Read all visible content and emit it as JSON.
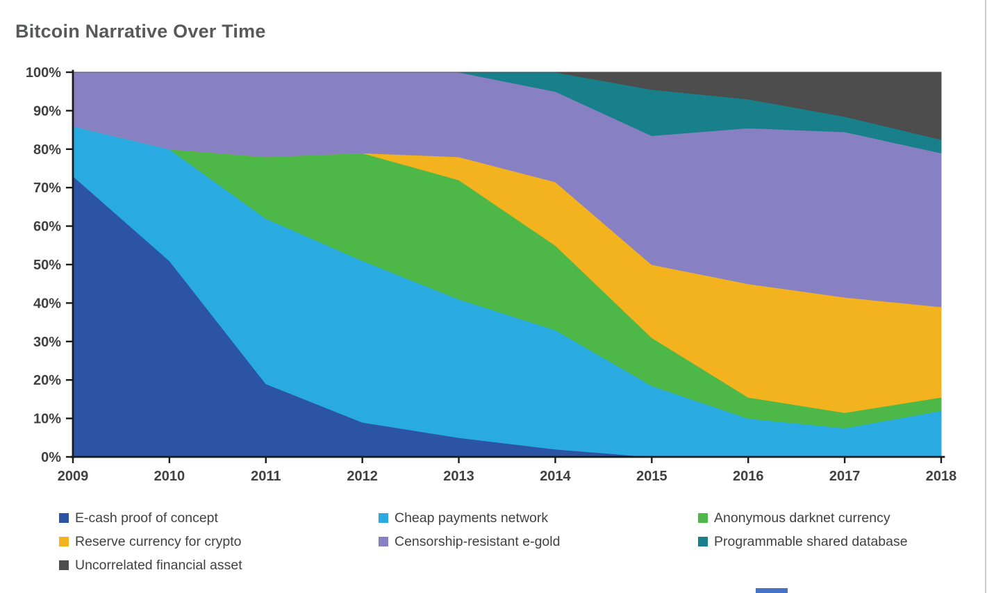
{
  "title": {
    "text": "Bitcoin Narrative Over Time",
    "color": "#58595b"
  },
  "chart_data": {
    "type": "area",
    "stacked": true,
    "unit": "percent",
    "title": "Bitcoin Narrative Over Time",
    "x_label": "",
    "y_label": "",
    "grid": false,
    "legend_position": "bottom",
    "categories": [
      2009,
      2010,
      2011,
      2012,
      2013,
      2014,
      2015,
      2016,
      2017,
      2018
    ],
    "y_axis": {
      "min": 0,
      "max": 100,
      "tick_step": 10,
      "tick_labels": [
        "0%",
        "10%",
        "20%",
        "30%",
        "40%",
        "50%",
        "60%",
        "70%",
        "80%",
        "90%",
        "100%"
      ]
    },
    "axis_color": "#1a1a1a",
    "tick_label_color": "#414042",
    "series": [
      {
        "name": "E-cash proof of concept",
        "slug": "e-cash-proof-of-concept",
        "color": "#2b54a4",
        "values": [
          73,
          51,
          19,
          9,
          5,
          2,
          0,
          0,
          0,
          0
        ]
      },
      {
        "name": "Cheap payments network",
        "slug": "cheap-payments-network",
        "color": "#29abe2",
        "values": [
          13,
          29,
          43,
          42,
          36,
          31,
          18.5,
          10,
          7.5,
          12
        ]
      },
      {
        "name": "Anonymous darknet currency",
        "slug": "anonymous-darknet-currency",
        "color": "#4db748",
        "values": [
          0,
          0,
          16,
          28,
          31,
          22,
          12.5,
          5.5,
          4,
          3.5
        ]
      },
      {
        "name": "Reserve currency for crypto",
        "slug": "reserve-currency-for-crypto",
        "color": "#f2b31e",
        "values": [
          0,
          0,
          0,
          0,
          6,
          16.5,
          19,
          29.5,
          30,
          23.5
        ]
      },
      {
        "name": "Censorship-resistant e-gold",
        "slug": "censorship-resistant-e-gold",
        "color": "#8781c4",
        "values": [
          14,
          20,
          22,
          21,
          22,
          23.5,
          33.5,
          40.5,
          43,
          40
        ]
      },
      {
        "name": "Programmable shared database",
        "slug": "programmable-shared-database",
        "color": "#17808a",
        "values": [
          0,
          0,
          0,
          0,
          0,
          5,
          12,
          7.5,
          4,
          3.5
        ]
      },
      {
        "name": "Uncorrelated financial asset",
        "slug": "uncorrelated-financial-asset",
        "color": "#4d4d4d",
        "values": [
          0,
          0,
          0,
          0,
          0,
          0,
          4.5,
          7,
          11.5,
          17.5
        ]
      }
    ],
    "legend_order": [
      "e-cash-proof-of-concept",
      "cheap-payments-network",
      "anonymous-darknet-currency",
      "reserve-currency-for-crypto",
      "censorship-resistant-e-gold",
      "programmable-shared-database",
      "uncorrelated-financial-asset"
    ]
  },
  "artifacts": {
    "right_edge_color": "#cccccc",
    "bottom_blue_bar_color": "#4472c4"
  }
}
